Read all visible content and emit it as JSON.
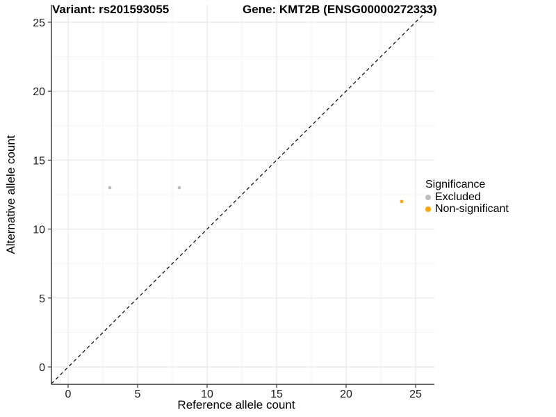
{
  "chart_data": {
    "type": "scatter",
    "title_left": "Variant: rs201593055",
    "title_right": "Gene: KMT2B (ENSG00000272333)",
    "xlabel": "Reference allele count",
    "ylabel": "Alternative allele count",
    "xlim": [
      0,
      25
    ],
    "ylim": [
      0,
      25
    ],
    "xticks": [
      0,
      5,
      10,
      15,
      20,
      25
    ],
    "yticks": [
      0,
      5,
      10,
      15,
      20,
      25
    ],
    "minor_grid_step": 2.5,
    "grid": true,
    "identity_line": {
      "type": "dashed",
      "color": "#111111",
      "equation": "y = x"
    },
    "series": [
      {
        "name": "Excluded",
        "color": "#bebebe",
        "points": [
          [
            3,
            13
          ],
          [
            8,
            13
          ]
        ]
      },
      {
        "name": "Non-significant",
        "color": "#ffa500",
        "points": [
          [
            24,
            12
          ]
        ]
      }
    ],
    "legend": {
      "title": "Significance",
      "position": "right"
    },
    "colors": {
      "major_grid": "#e8e8e8",
      "minor_grid": "#f3f3f3",
      "axis_line": "#333333"
    }
  }
}
